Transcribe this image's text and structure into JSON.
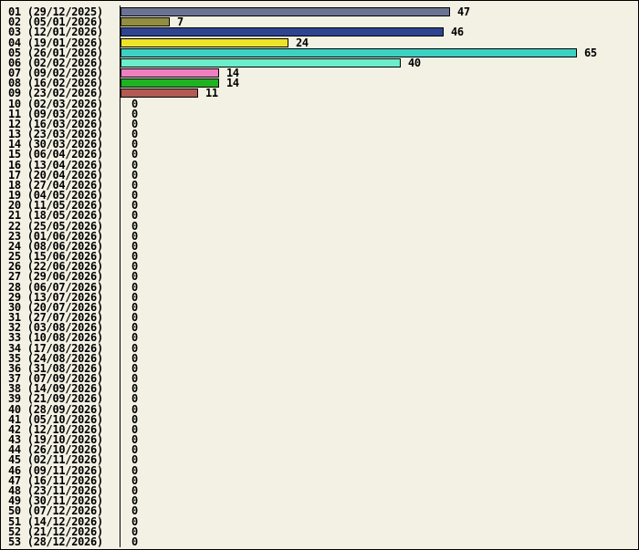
{
  "window": {
    "background_color": "#F2F1E4",
    "border_color": "#000000",
    "text_color": "#000000"
  },
  "chart_data": {
    "type": "bar",
    "orientation": "horizontal",
    "title": "",
    "xlabel": "",
    "ylabel": "",
    "grid": false,
    "legend": "none",
    "axis_line": "vertical-left",
    "xlim": [
      0,
      73
    ],
    "value_labels_shown": true,
    "categories": [
      "01 (29/12/2025)",
      "02 (05/01/2026)",
      "03 (12/01/2026)",
      "04 (19/01/2026)",
      "05 (26/01/2026)",
      "06 (02/02/2026)",
      "07 (09/02/2026)",
      "08 (16/02/2026)",
      "09 (23/02/2026)",
      "10 (02/03/2026)",
      "11 (09/03/2026)",
      "12 (16/03/2026)",
      "13 (23/03/2026)",
      "14 (30/03/2026)",
      "15 (06/04/2026)",
      "16 (13/04/2026)",
      "17 (20/04/2026)",
      "18 (27/04/2026)",
      "19 (04/05/2026)",
      "20 (11/05/2026)",
      "21 (18/05/2026)",
      "22 (25/05/2026)",
      "23 (01/06/2026)",
      "24 (08/06/2026)",
      "25 (15/06/2026)",
      "26 (22/06/2026)",
      "27 (29/06/2026)",
      "28 (06/07/2026)",
      "29 (13/07/2026)",
      "30 (20/07/2026)",
      "31 (27/07/2026)",
      "32 (03/08/2026)",
      "33 (10/08/2026)",
      "34 (17/08/2026)",
      "35 (24/08/2026)",
      "36 (31/08/2026)",
      "37 (07/09/2026)",
      "38 (14/09/2026)",
      "39 (21/09/2026)",
      "40 (28/09/2026)",
      "41 (05/10/2026)",
      "42 (12/10/2026)",
      "43 (19/10/2026)",
      "44 (26/10/2026)",
      "45 (02/11/2026)",
      "46 (09/11/2026)",
      "47 (16/11/2026)",
      "48 (23/11/2026)",
      "49 (30/11/2026)",
      "50 (07/12/2026)",
      "51 (14/12/2026)",
      "52 (21/12/2026)",
      "53 (28/12/2026)"
    ],
    "values": [
      47,
      7,
      46,
      24,
      65,
      40,
      14,
      14,
      11,
      0,
      0,
      0,
      0,
      0,
      0,
      0,
      0,
      0,
      0,
      0,
      0,
      0,
      0,
      0,
      0,
      0,
      0,
      0,
      0,
      0,
      0,
      0,
      0,
      0,
      0,
      0,
      0,
      0,
      0,
      0,
      0,
      0,
      0,
      0,
      0,
      0,
      0,
      0,
      0,
      0,
      0,
      0,
      0
    ],
    "bar_colors": [
      "#6B7394",
      "#918E42",
      "#2E4490",
      "#EDE427",
      "#3BD2C3",
      "#6BEECB",
      "#F07FC0",
      "#1FB322",
      "#B25B52"
    ]
  }
}
